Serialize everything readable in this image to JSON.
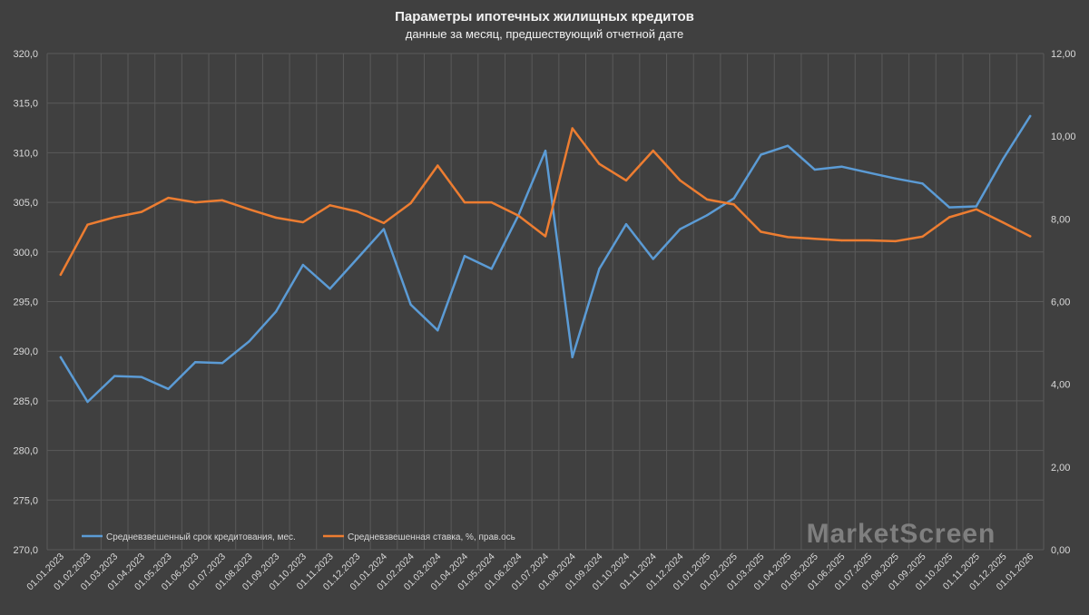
{
  "watermark": "MarketScreen",
  "chart_data": {
    "type": "line",
    "title": "Параметры ипотечных жилищных кредитов",
    "subtitle": "данные за месяц, предшествующий отчетной дате",
    "categories": [
      "01.01.2023",
      "01.02.2023",
      "01.03.2023",
      "01.04.2023",
      "01.05.2023",
      "01.06.2023",
      "01.07.2023",
      "01.08.2023",
      "01.09.2023",
      "01.10.2023",
      "01.11.2023",
      "01.12.2023",
      "01.01.2024",
      "01.02.2024",
      "01.03.2024",
      "01.04.2024",
      "01.05.2024",
      "01.06.2024",
      "01.07.2024",
      "01.08.2024",
      "01.09.2024",
      "01.10.2024",
      "01.11.2024",
      "01.12.2024",
      "01.01.2025",
      "01.02.2025",
      "01.03.2025",
      "01.04.2025",
      "01.05.2025",
      "01.06.2025",
      "01.07.2025",
      "01.08.2025",
      "01.09.2025",
      "01.10.2025",
      "01.11.2025",
      "01.12.2025",
      "01.01.2026"
    ],
    "ylim_left": [
      270,
      320
    ],
    "yticks_left": [
      "320,0",
      "315,0",
      "310,0",
      "305,0",
      "300,0",
      "295,0",
      "290,0",
      "285,0",
      "280,0",
      "275,0",
      "270,0"
    ],
    "ylim_right": [
      0,
      12
    ],
    "yticks_right": [
      "12,00",
      "10,00",
      "8,00",
      "6,00",
      "4,00",
      "2,00",
      "0,00"
    ],
    "grid": true,
    "legend_position": "bottom-left",
    "series": [
      {
        "name": "Средневзвешенный срок кредитования, мес.",
        "axis": "left",
        "color": "#5b9bd5",
        "values": [
          289.4,
          284.9,
          287.5,
          287.4,
          286.2,
          288.9,
          288.8,
          291.0,
          294.0,
          298.7,
          296.3,
          299.3,
          302.3,
          294.7,
          292.1,
          299.6,
          298.3,
          303.7,
          310.2,
          289.4,
          298.3,
          302.8,
          299.3,
          302.3,
          303.7,
          305.4,
          309.8,
          310.7,
          308.3,
          308.6,
          308.0,
          307.4,
          306.9,
          304.5,
          304.6,
          309.4,
          313.7
        ]
      },
      {
        "name": "Средневзвешенная ставка, %, прав.ось",
        "axis": "right",
        "color": "#ed7d31",
        "values": [
          6.65,
          7.86,
          8.04,
          8.17,
          8.51,
          8.4,
          8.45,
          8.23,
          8.03,
          7.92,
          8.33,
          8.18,
          7.9,
          8.38,
          9.29,
          8.4,
          8.4,
          8.08,
          7.58,
          10.19,
          9.33,
          8.93,
          9.65,
          8.93,
          8.47,
          8.35,
          7.69,
          7.56,
          7.52,
          7.48,
          7.48,
          7.46,
          7.57,
          8.04,
          8.23,
          7.91,
          7.58
        ]
      }
    ]
  }
}
